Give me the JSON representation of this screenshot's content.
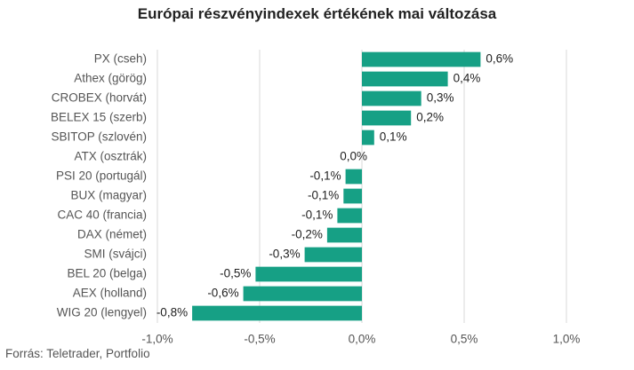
{
  "chart_data": {
    "type": "bar",
    "orientation": "horizontal",
    "title": "Európai részvényindexek értékének mai változása",
    "categories": [
      "PX (cseh)",
      "Athex (görög)",
      "CROBEX (horvát)",
      "BELEX 15 (szerb)",
      "SBITOP (szlovén)",
      "ATX (osztrák)",
      "PSI 20 (portugál)",
      "BUX (magyar)",
      "CAC 40 (francia)",
      "DAX (német)",
      "SMI (svájci)",
      "BEL 20 (belga)",
      "AEX (holland)",
      "WIG 20 (lengyel)"
    ],
    "values": [
      0.58,
      0.42,
      0.29,
      0.24,
      0.06,
      0.0,
      -0.08,
      -0.09,
      -0.12,
      -0.17,
      -0.28,
      -0.52,
      -0.58,
      -0.83
    ],
    "data_labels": [
      "0,6%",
      "0,4%",
      "0,3%",
      "0,2%",
      "0,1%",
      "0,0%",
      "-0,1%",
      "-0,1%",
      "-0,1%",
      "-0,2%",
      "-0,3%",
      "-0,5%",
      "-0,6%",
      "-0,8%"
    ],
    "xticks": [
      -1.0,
      -0.5,
      0.0,
      0.5,
      1.0
    ],
    "xtick_labels": [
      "-1,0%",
      "-0,5%",
      "0,0%",
      "0,5%",
      "1,0%"
    ],
    "xlim": [
      -1.0,
      1.0
    ],
    "grid": "vertical",
    "bar_color": "#16a085",
    "grid_color": "#d9d9d9"
  },
  "source": "Forrás: Teletrader, Portfolio"
}
